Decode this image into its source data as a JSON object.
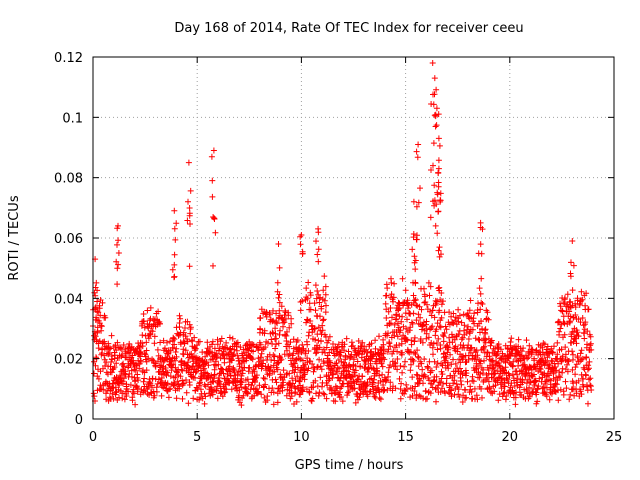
{
  "chart_data": {
    "type": "scatter",
    "title": "Day 168 of 2014, Rate Of TEC Index for receiver ceeu",
    "xlabel": "GPS time / hours",
    "ylabel": "ROTI / TECUs",
    "xlim": [
      0,
      25
    ],
    "ylim": [
      0,
      0.12
    ],
    "xticks": [
      0,
      5,
      10,
      15,
      20,
      25
    ],
    "yticks": [
      0,
      0.02,
      0.04,
      0.06,
      0.08,
      0.1,
      0.12
    ],
    "xtick_labels": [
      "0",
      "5",
      "10",
      "15",
      "20",
      "25"
    ],
    "ytick_labels": [
      "0",
      "0.02",
      "0.04",
      "0.06",
      "0.08",
      "0.1",
      "0.12"
    ],
    "grid": true,
    "marker": "+",
    "color": "#ff0000",
    "series": [
      {
        "name": "ROTI",
        "x_range": [
          0,
          23.9
        ],
        "baseline_range": [
          0.007,
          0.03
        ],
        "notable_peaks": [
          {
            "x": 0.1,
            "y": 0.053
          },
          {
            "x": 1.2,
            "y": 0.064
          },
          {
            "x": 3.9,
            "y": 0.069
          },
          {
            "x": 4.6,
            "y": 0.085
          },
          {
            "x": 5.8,
            "y": 0.089
          },
          {
            "x": 8.9,
            "y": 0.058
          },
          {
            "x": 10.0,
            "y": 0.061
          },
          {
            "x": 10.8,
            "y": 0.063
          },
          {
            "x": 15.4,
            "y": 0.072
          },
          {
            "x": 15.6,
            "y": 0.091
          },
          {
            "x": 16.3,
            "y": 0.118
          },
          {
            "x": 16.4,
            "y": 0.113
          },
          {
            "x": 16.5,
            "y": 0.103
          },
          {
            "x": 16.6,
            "y": 0.093
          },
          {
            "x": 16.6,
            "y": 0.083
          },
          {
            "x": 18.6,
            "y": 0.065
          },
          {
            "x": 23.0,
            "y": 0.059
          }
        ]
      }
    ]
  }
}
